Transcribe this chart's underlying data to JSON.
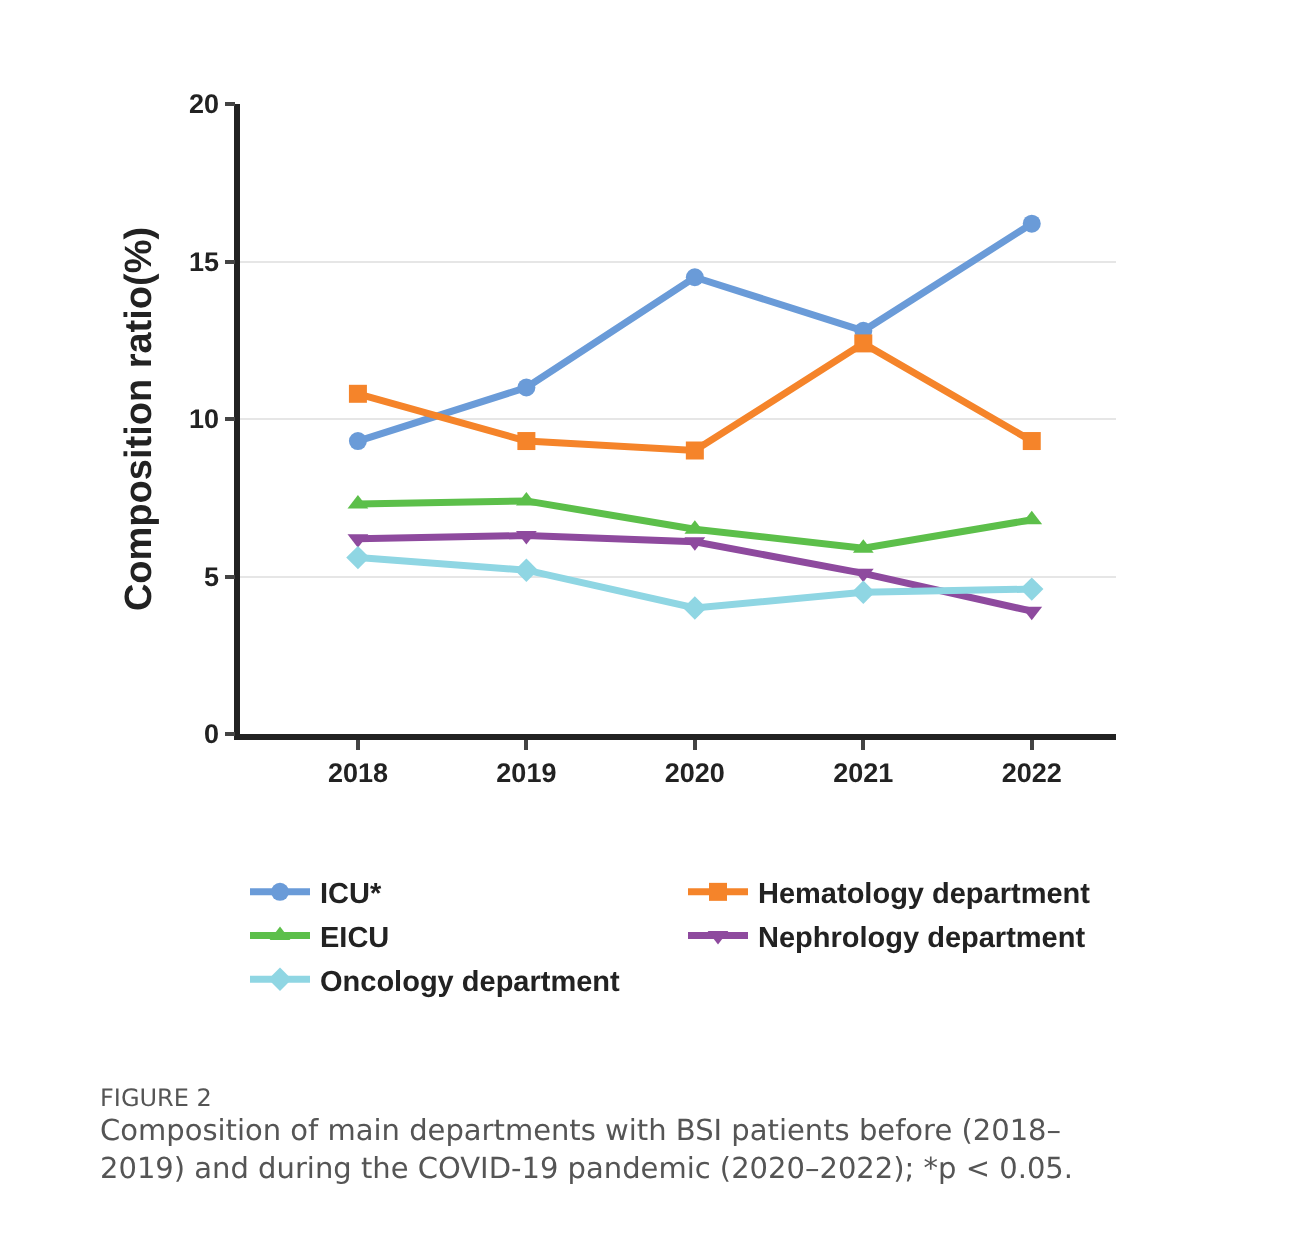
{
  "chart_data": {
    "type": "line",
    "ylabel": "Composition ratio(%)",
    "categories": [
      "2018",
      "2019",
      "2020",
      "2021",
      "2022"
    ],
    "series": [
      {
        "name": "ICU*",
        "color": "#6a9bd8",
        "marker": "circle",
        "values": [
          9.3,
          11.0,
          14.5,
          12.8,
          16.2
        ]
      },
      {
        "name": "Hematology department",
        "color": "#f5842a",
        "marker": "square",
        "values": [
          10.8,
          9.3,
          9.0,
          12.4,
          9.3
        ]
      },
      {
        "name": "EICU",
        "color": "#5cbf4a",
        "marker": "triangle",
        "values": [
          7.3,
          7.4,
          6.5,
          5.9,
          6.8
        ]
      },
      {
        "name": "Nephrology department",
        "color": "#8e4a9e",
        "marker": "triangle-down",
        "values": [
          6.2,
          6.3,
          6.1,
          5.1,
          3.9
        ]
      },
      {
        "name": "Oncology department",
        "color": "#8fd6e3",
        "marker": "diamond",
        "values": [
          5.6,
          5.2,
          4.0,
          4.5,
          4.6
        ]
      }
    ],
    "ylim": [
      0,
      20
    ],
    "yticks": [
      0,
      5,
      10,
      15,
      20
    ],
    "grid": "y",
    "legend": "bottom",
    "line_style": "solid",
    "annotations": [
      "FIGURE 2",
      "Composition of main departments with BSI patients before (2018–2019) and during the COVID-19 pandemic (2020–2022); *p < 0.05."
    ]
  }
}
